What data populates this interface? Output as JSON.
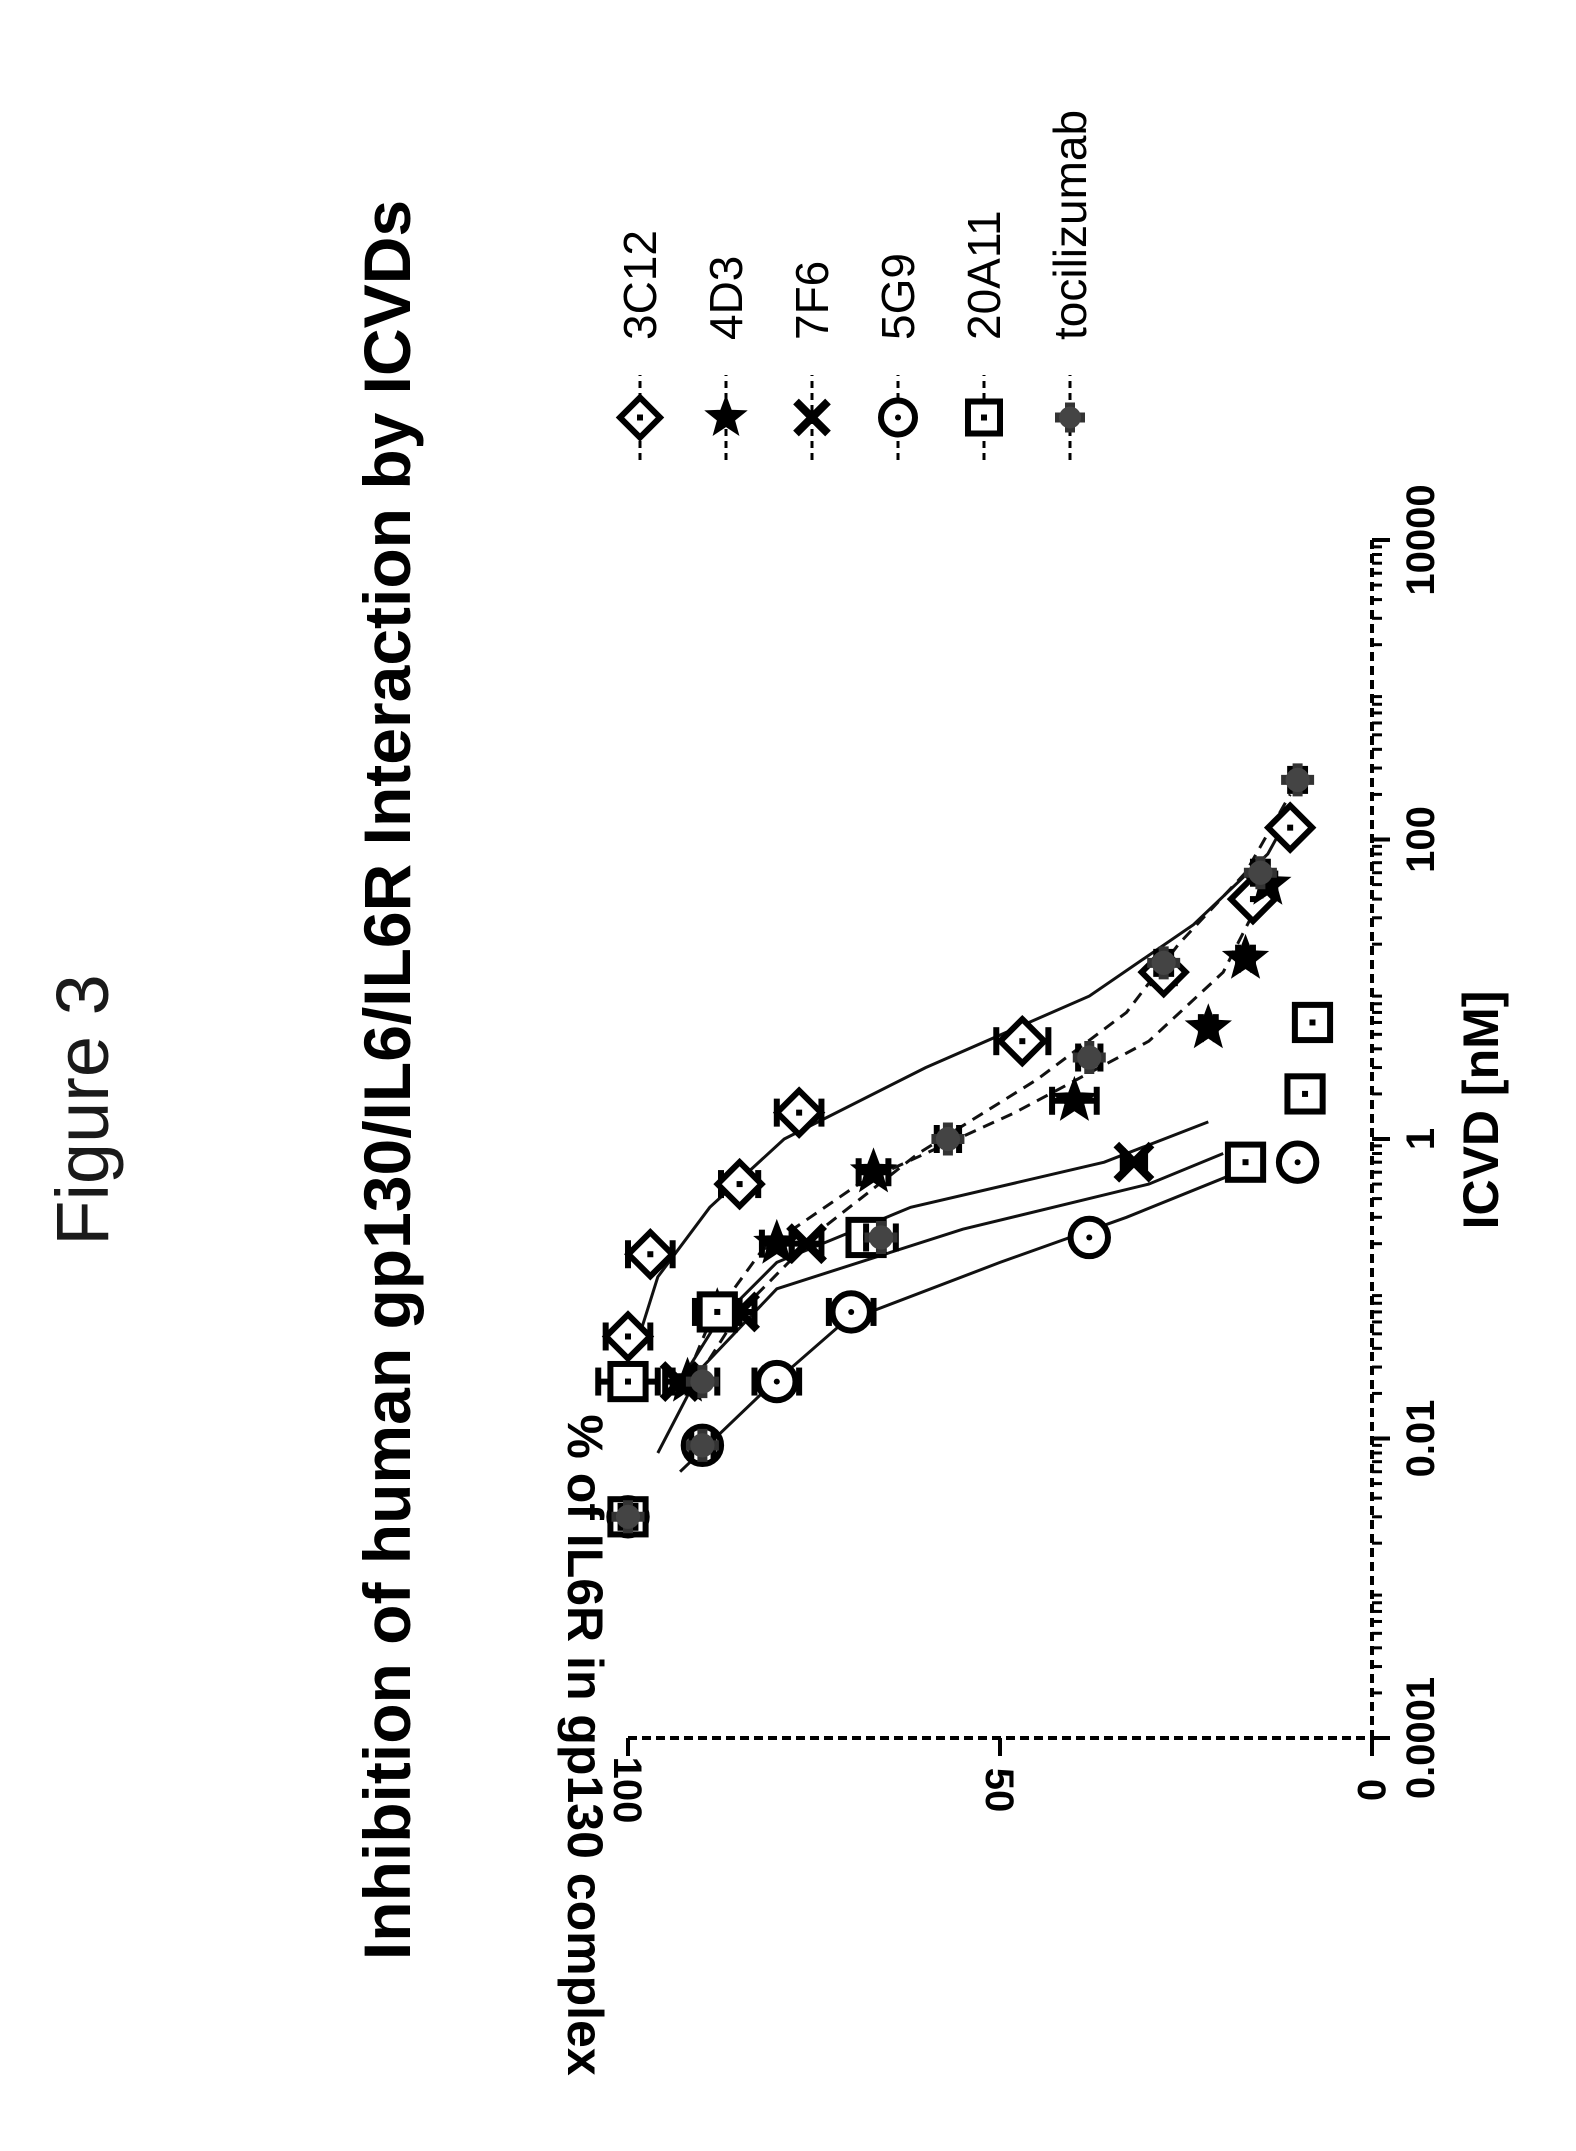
{
  "figure_label": "Figure 3",
  "chart_data": {
    "type": "scatter",
    "title": "Inhibition of human gp130/IL6/IL6R Interaction by ICVDs",
    "xlabel": "ICVD [nM]",
    "ylabel": "% of IL6R in gp130 complex",
    "x_scale": "log",
    "xlim": [
      0.0001,
      10000
    ],
    "ylim": [
      0,
      100
    ],
    "x_ticks": [
      {
        "value": 0.0001,
        "label": "0.0001"
      },
      {
        "value": 0.01,
        "label": "0.01"
      },
      {
        "value": 1,
        "label": "1"
      },
      {
        "value": 100,
        "label": "100"
      },
      {
        "value": 10000,
        "label": "10000"
      }
    ],
    "y_ticks": [
      {
        "value": 0,
        "label": "0"
      },
      {
        "value": 50,
        "label": "50"
      },
      {
        "value": 100,
        "label": "100"
      }
    ],
    "legend_position": "right",
    "series": [
      {
        "name": "3C12",
        "marker": "diamond",
        "line": "solid",
        "points": [
          {
            "x": 0.048,
            "y": 100,
            "err": 3
          },
          {
            "x": 0.17,
            "y": 97,
            "err": 3
          },
          {
            "x": 0.5,
            "y": 85,
            "err": 2.5
          },
          {
            "x": 1.5,
            "y": 77,
            "err": 3
          },
          {
            "x": 4.5,
            "y": 47,
            "err": 3.5
          },
          {
            "x": 13,
            "y": 28,
            "err": 1.5
          },
          {
            "x": 40,
            "y": 16,
            "err": 1
          },
          {
            "x": 120,
            "y": 11,
            "err": 1
          }
        ],
        "fit": [
          [
            0.04,
            99
          ],
          [
            0.12,
            96
          ],
          [
            0.35,
            89
          ],
          [
            1,
            79
          ],
          [
            3,
            60
          ],
          [
            9,
            38
          ],
          [
            27,
            24
          ],
          [
            80,
            14
          ],
          [
            150,
            11
          ]
        ]
      },
      {
        "name": "4D3",
        "marker": "star",
        "line": "dashed",
        "points": [
          {
            "x": 0.024,
            "y": 92,
            "err": 2
          },
          {
            "x": 0.07,
            "y": 88,
            "err": 2
          },
          {
            "x": 0.2,
            "y": 80,
            "err": 2
          },
          {
            "x": 0.6,
            "y": 67,
            "err": 2
          },
          {
            "x": 1.8,
            "y": 40,
            "err": 3
          },
          {
            "x": 5.5,
            "y": 22,
            "err": 1
          },
          {
            "x": 16,
            "y": 17,
            "err": 1
          },
          {
            "x": 50,
            "y": 14,
            "err": 1
          }
        ],
        "fit": [
          [
            0.02,
            93
          ],
          [
            0.06,
            89
          ],
          [
            0.18,
            82
          ],
          [
            0.5,
            69
          ],
          [
            1.5,
            48
          ],
          [
            4.5,
            30
          ],
          [
            13,
            20
          ],
          [
            40,
            15
          ]
        ]
      },
      {
        "name": "7F6",
        "marker": "x",
        "line": "solid",
        "points": [
          {
            "x": 0.024,
            "y": 93,
            "err": 2
          },
          {
            "x": 0.07,
            "y": 85,
            "err": 2
          },
          {
            "x": 0.2,
            "y": 76,
            "err": 2
          },
          {
            "x": 0.7,
            "y": 32,
            "err": 1.5
          }
        ],
        "fit": [
          [
            0.02,
            94
          ],
          [
            0.06,
            88
          ],
          [
            0.15,
            80
          ],
          [
            0.35,
            62
          ],
          [
            0.7,
            36
          ],
          [
            1.3,
            22
          ]
        ]
      },
      {
        "name": "5G9",
        "marker": "circle",
        "line": "solid",
        "points": [
          {
            "x": 0.003,
            "y": 100,
            "err": 1
          },
          {
            "x": 0.009,
            "y": 90,
            "err": 1.5
          },
          {
            "x": 0.024,
            "y": 80,
            "err": 3
          },
          {
            "x": 0.07,
            "y": 70,
            "err": 3
          },
          {
            "x": 0.22,
            "y": 38,
            "err": 1.5
          },
          {
            "x": 0.7,
            "y": 10,
            "err": 1
          }
        ],
        "fit": [
          [
            0.006,
            93
          ],
          [
            0.02,
            82
          ],
          [
            0.06,
            71
          ],
          [
            0.15,
            50
          ],
          [
            0.3,
            33
          ],
          [
            0.6,
            18
          ]
        ]
      },
      {
        "name": "20A11",
        "marker": "square",
        "line": "solid",
        "points": [
          {
            "x": 0.003,
            "y": 100,
            "err": 1
          },
          {
            "x": 0.024,
            "y": 100,
            "err": 4
          },
          {
            "x": 0.07,
            "y": 88,
            "err": 3
          },
          {
            "x": 0.22,
            "y": 68,
            "err": 2
          },
          {
            "x": 0.7,
            "y": 17,
            "err": 1
          },
          {
            "x": 2,
            "y": 9,
            "err": 1
          },
          {
            "x": 6,
            "y": 8,
            "err": 1
          }
        ],
        "fit": [
          [
            0.008,
            96
          ],
          [
            0.03,
            90
          ],
          [
            0.1,
            80
          ],
          [
            0.25,
            55
          ],
          [
            0.5,
            30
          ],
          [
            0.8,
            20
          ]
        ]
      },
      {
        "name": "tocilizumab",
        "marker": "cross",
        "line": "dashed",
        "points": [
          {
            "x": 0.003,
            "y": 100,
            "err": 1
          },
          {
            "x": 0.009,
            "y": 90,
            "err": 1.5
          },
          {
            "x": 0.024,
            "y": 90,
            "err": 2
          },
          {
            "x": 0.22,
            "y": 66,
            "err": 2
          },
          {
            "x": 1,
            "y": 57,
            "err": 1.5
          },
          {
            "x": 3.5,
            "y": 38,
            "err": 1.5
          },
          {
            "x": 15,
            "y": 28,
            "err": 1
          },
          {
            "x": 60,
            "y": 15,
            "err": 1
          },
          {
            "x": 250,
            "y": 10,
            "err": 1
          }
        ],
        "fit": [
          [
            0.02,
            92
          ],
          [
            0.07,
            85
          ],
          [
            0.25,
            74
          ],
          [
            0.8,
            61
          ],
          [
            2.5,
            45
          ],
          [
            7,
            33
          ],
          [
            20,
            26
          ],
          [
            60,
            17
          ],
          [
            200,
            11
          ]
        ]
      }
    ]
  }
}
